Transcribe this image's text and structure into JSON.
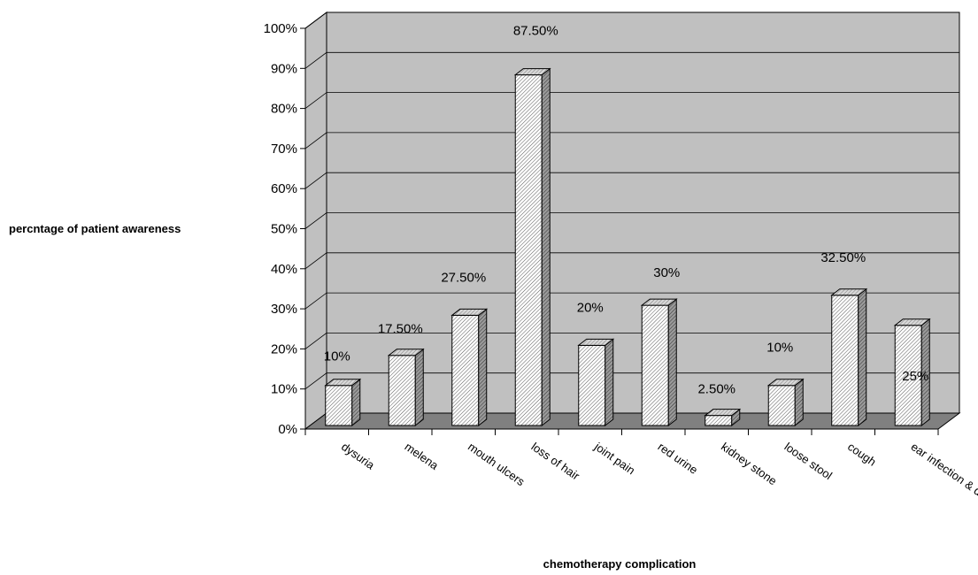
{
  "chart_data": {
    "type": "bar",
    "style": "3d-clustered-column",
    "xlabel": "chemotherapy complication",
    "ylabel": "percntage of patient awareness",
    "ylim": [
      0,
      100
    ],
    "ytick_step": 10,
    "ytick_suffix": "%",
    "grid": true,
    "categories": [
      "dysuria",
      "melena",
      "mouth ulcers",
      "loss of hair",
      "joint pain",
      "red urine",
      "kidney stone",
      "loose stool",
      "cough",
      "ear infection & difficult respiration"
    ],
    "values": [
      10,
      17.5,
      27.5,
      87.5,
      20,
      30,
      2.5,
      10,
      32.5,
      25
    ],
    "data_labels": [
      "10%",
      "17.50%",
      "27.50%",
      "87.50%",
      "20%",
      "30%",
      "2.50%",
      "10%",
      "32.50%",
      "25%"
    ]
  },
  "colors": {
    "wall": "#c0c0c0",
    "floor": "#808080",
    "bar_face": "#ffffff",
    "bar_side": "#808080",
    "bar_top": "#c0c0c0",
    "grid": "#000000"
  }
}
